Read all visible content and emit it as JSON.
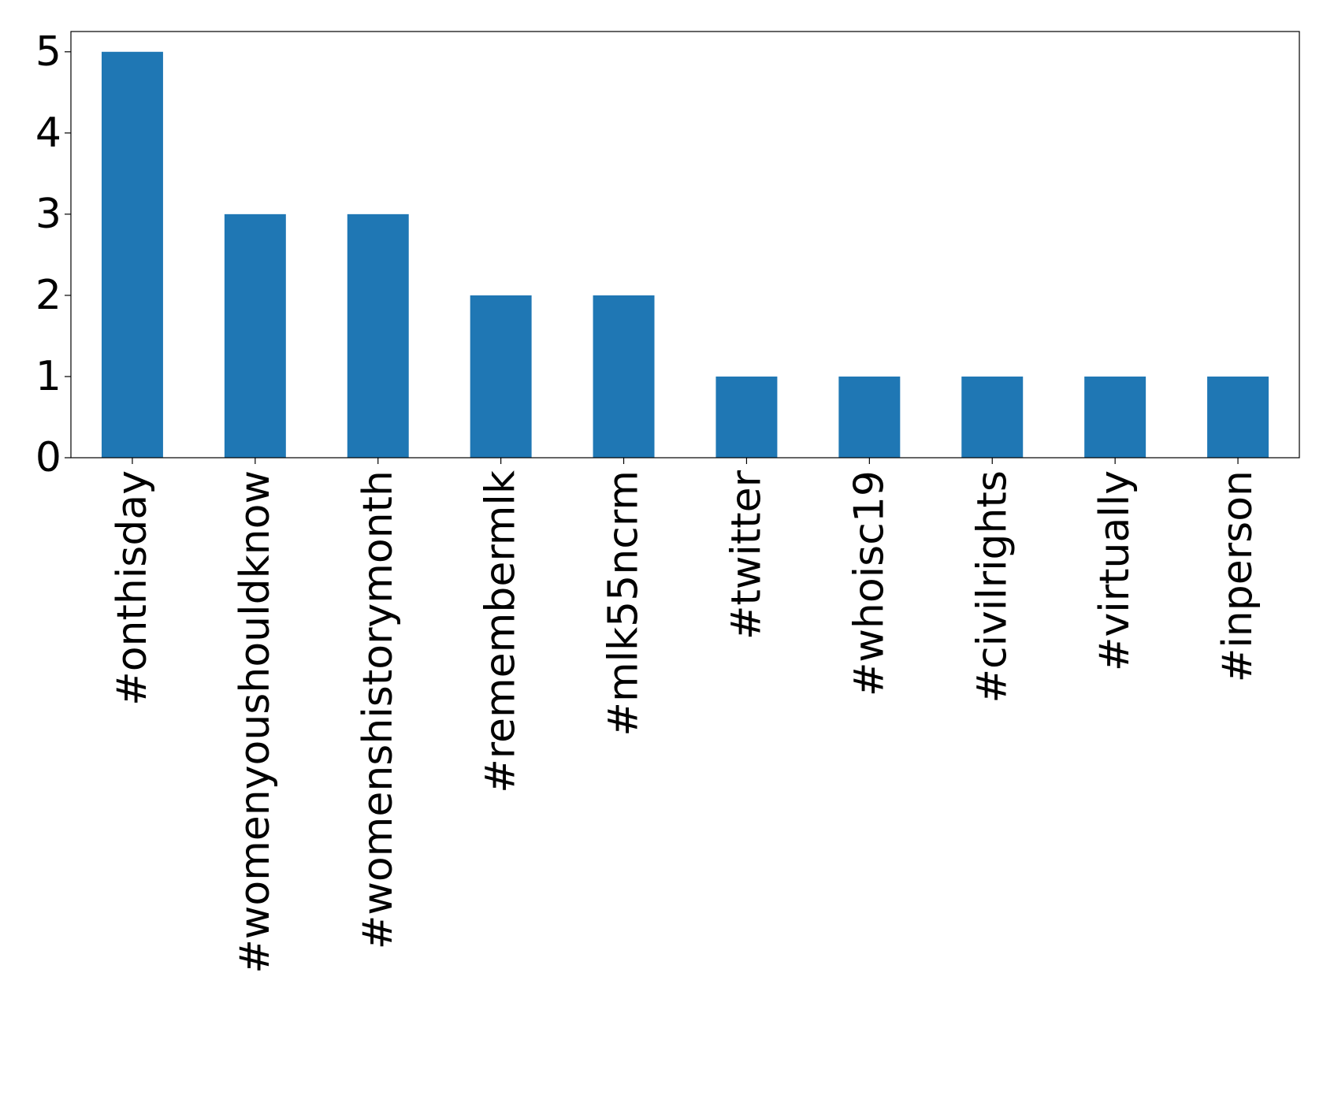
{
  "chart_data": {
    "type": "bar",
    "categories": [
      "#onthisday",
      "#womenyoushouldknow",
      "#womenshistorymonth",
      "#remembermlk",
      "#mlk55ncrm",
      "#twitter",
      "#whoisc19",
      "#civilrights",
      "#virtually",
      "#inperson"
    ],
    "values": [
      5,
      3,
      3,
      2,
      2,
      1,
      1,
      1,
      1,
      1
    ],
    "color": "#1f77b4",
    "ylim": [
      0,
      5.25
    ],
    "yticks": [
      0,
      1,
      2,
      3,
      4,
      5
    ],
    "grid": false
  }
}
